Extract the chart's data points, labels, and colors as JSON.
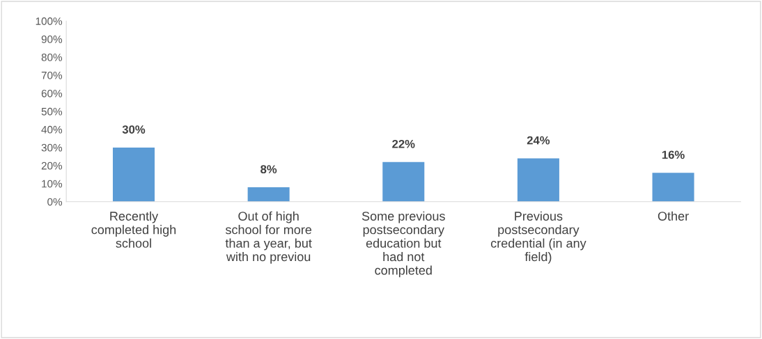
{
  "chart_data": {
    "type": "bar",
    "categories": [
      "Recently\ncompleted high\nschool",
      "Out of high\nschool for more\nthan a year, but\nwith no previou",
      "Some previous\npostsecondary\neducation but\nhad not\ncompleted",
      "Previous\npostsecondary\ncredential (in any\nfield)",
      "Other"
    ],
    "values": [
      30,
      8,
      22,
      24,
      16
    ],
    "value_labels": [
      "30%",
      "8%",
      "22%",
      "24%",
      "16%"
    ],
    "color": "#5b9bd5",
    "ylim": [
      0,
      100
    ],
    "yticks": [
      {
        "value": 0,
        "label": "0%"
      },
      {
        "value": 10,
        "label": "10%"
      },
      {
        "value": 20,
        "label": "20%"
      },
      {
        "value": 30,
        "label": "30%"
      },
      {
        "value": 40,
        "label": "40%"
      },
      {
        "value": 50,
        "label": "50%"
      },
      {
        "value": 60,
        "label": "60%"
      },
      {
        "value": 70,
        "label": "70%"
      },
      {
        "value": 80,
        "label": "80%"
      },
      {
        "value": 90,
        "label": "90%"
      },
      {
        "value": 100,
        "label": "100%"
      }
    ],
    "grid": false,
    "legend": false
  }
}
